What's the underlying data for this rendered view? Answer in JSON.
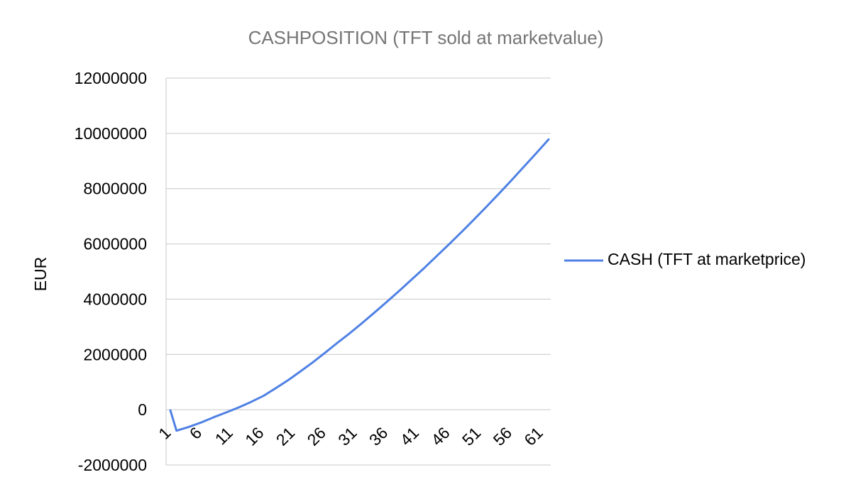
{
  "chart_data": {
    "type": "line",
    "title": "CASHPOSITION (TFT sold at marketvalue)",
    "xlabel": "",
    "ylabel": "EUR",
    "ylim": [
      -2000000,
      12000000
    ],
    "yticks": [
      -2000000,
      0,
      2000000,
      4000000,
      6000000,
      8000000,
      10000000,
      12000000
    ],
    "ytick_labels": [
      "-2000000",
      "0",
      "2000000",
      "4000000",
      "6000000",
      "8000000",
      "10000000",
      "12000000"
    ],
    "xlim": [
      1,
      62
    ],
    "xticks": [
      1,
      6,
      11,
      16,
      21,
      26,
      31,
      36,
      41,
      46,
      51,
      56,
      61
    ],
    "xtick_labels": [
      "1",
      "6",
      "11",
      "16",
      "21",
      "26",
      "31",
      "36",
      "41",
      "46",
      "51",
      "56",
      "61"
    ],
    "grid": true,
    "legend": "right",
    "colors": {
      "series": "#4f81e4"
    },
    "series": [
      {
        "name": "CASH (TFT at marketprice)",
        "x": [
          1,
          2,
          4,
          6,
          8,
          10,
          12,
          14,
          16,
          18,
          20,
          22,
          24,
          26,
          28,
          30,
          32,
          34,
          36,
          38,
          40,
          42,
          44,
          46,
          48,
          50,
          52,
          54,
          56,
          58,
          60,
          62
        ],
        "values": [
          -20000,
          -760000,
          -620000,
          -460000,
          -270000,
          -100000,
          80000,
          280000,
          500000,
          780000,
          1070000,
          1390000,
          1720000,
          2070000,
          2430000,
          2780000,
          3150000,
          3530000,
          3920000,
          4320000,
          4730000,
          5140000,
          5570000,
          6000000,
          6440000,
          6890000,
          7350000,
          7820000,
          8300000,
          8790000,
          9280000,
          9780000
        ]
      }
    ]
  }
}
